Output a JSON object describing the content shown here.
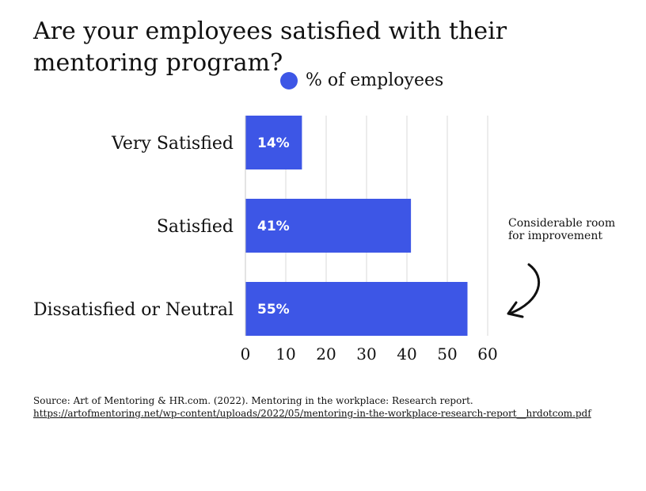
{
  "chart_data": {
    "type": "bar",
    "orientation": "horizontal",
    "title": "Are your employees satisfied with their mentoring program?",
    "categories": [
      "Very Satisfied",
      "Satisfied",
      "Dissatisfied or Neutral"
    ],
    "series": [
      {
        "name": "% of employees",
        "values": [
          14,
          41,
          55
        ]
      }
    ],
    "data_labels": [
      "14%",
      "41%",
      "55%"
    ],
    "xlim": [
      0,
      60
    ],
    "xticks": [
      0,
      10,
      20,
      30,
      40,
      50,
      60
    ],
    "grid": true,
    "legend_position": "top",
    "bar_color": "#3d56e6",
    "annotation": "Considerable room for improvement"
  },
  "source": {
    "text": "Source: Art of Mentoring & HR.com. (2022). Mentoring in the workplace: Research report.",
    "url": "https://artofmentoring.net/wp-content/uploads/2022/05/mentoring-in-the-workplace-research-report__hrdotcom.pdf"
  }
}
